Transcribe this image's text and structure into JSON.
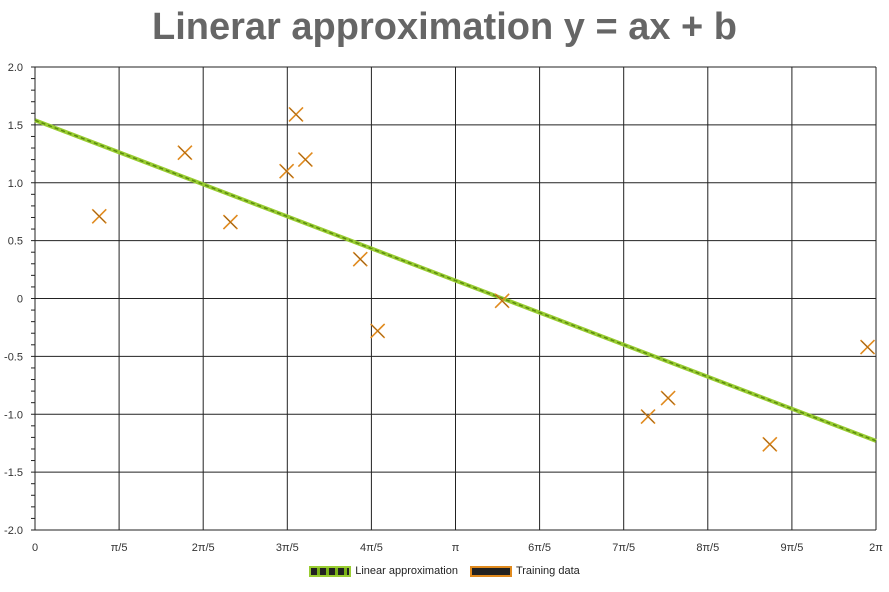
{
  "chart_data": {
    "type": "scatter",
    "title": "Linerar approximation y = ax + b",
    "xlabel": "",
    "ylabel": "",
    "xlim": [
      0,
      6.2832
    ],
    "ylim": [
      -2.0,
      2.0
    ],
    "x_ticks": [
      {
        "value": 0,
        "label": "0"
      },
      {
        "value": 0.6283,
        "label": "π/5"
      },
      {
        "value": 1.2566,
        "label": "2π/5"
      },
      {
        "value": 1.885,
        "label": "3π/5"
      },
      {
        "value": 2.5133,
        "label": "4π/5"
      },
      {
        "value": 3.1416,
        "label": "π"
      },
      {
        "value": 3.7699,
        "label": "6π/5"
      },
      {
        "value": 4.3982,
        "label": "7π/5"
      },
      {
        "value": 5.0265,
        "label": "8π/5"
      },
      {
        "value": 5.6549,
        "label": "9π/5"
      },
      {
        "value": 6.2832,
        "label": "2π"
      }
    ],
    "y_ticks": [
      {
        "value": 2.0,
        "label": "2.0"
      },
      {
        "value": 1.5,
        "label": "1.5"
      },
      {
        "value": 1.0,
        "label": "1.0"
      },
      {
        "value": 0.5,
        "label": "0.5"
      },
      {
        "value": 0,
        "label": "0"
      },
      {
        "value": -0.5,
        "label": "-0.5"
      },
      {
        "value": -1.0,
        "label": "-1.0"
      },
      {
        "value": -1.5,
        "label": "-1.5"
      },
      {
        "value": -2.0,
        "label": "-2.0"
      }
    ],
    "grid": true,
    "legend_position": "bottom",
    "series": [
      {
        "name": "Linear approximation",
        "kind": "line",
        "color": "#9acd32",
        "x": [
          0,
          6.2832
        ],
        "y": [
          1.54,
          -1.23
        ]
      },
      {
        "name": "Training data",
        "kind": "scatter",
        "color": "#e08a1e",
        "x": [
          0.48,
          1.12,
          1.46,
          1.88,
          1.95,
          2.02,
          2.43,
          2.56,
          3.49,
          4.58,
          4.73,
          5.49,
          6.22
        ],
        "y": [
          0.71,
          1.26,
          0.66,
          1.1,
          1.59,
          1.2,
          0.34,
          -0.28,
          -0.02,
          -1.02,
          -0.86,
          -1.26,
          -0.42
        ]
      }
    ]
  },
  "legend": {
    "line_label": "Linear approximation",
    "training_label": "Training data"
  }
}
